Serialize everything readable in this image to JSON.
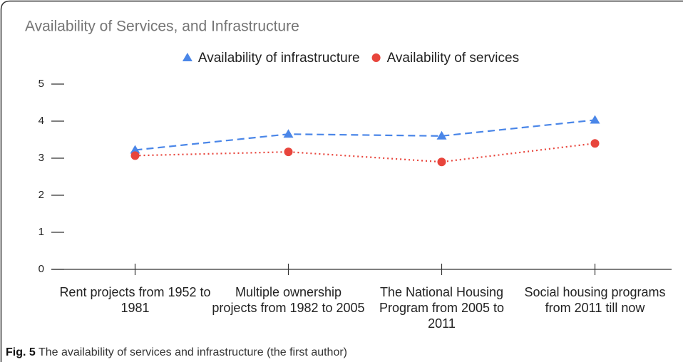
{
  "chart_data": {
    "type": "line",
    "title": "Availability of Services, and Infrastructure",
    "categories": [
      "Rent projects from 1952 to 1981",
      "Multiple ownership projects from 1982 to 2005",
      "The National Housing Program from 2005 to 2011",
      "Social housing programs from 2011 till now"
    ],
    "series": [
      {
        "name": "Availability of infrastructure",
        "color": "#4a86e8",
        "marker": "triangle",
        "dash": "dashed",
        "values": [
          3.22,
          3.65,
          3.6,
          4.03
        ]
      },
      {
        "name": "Availability of services",
        "color": "#e8453c",
        "marker": "circle",
        "dash": "dotted",
        "values": [
          3.07,
          3.17,
          2.9,
          3.4
        ]
      }
    ],
    "ylim": [
      0,
      5
    ],
    "yticks": [
      0,
      1,
      2,
      3,
      4,
      5
    ],
    "legend": "top"
  },
  "caption": {
    "label": "Fig. 5",
    "text": "The availability of services and infrastructure (the first author)"
  }
}
